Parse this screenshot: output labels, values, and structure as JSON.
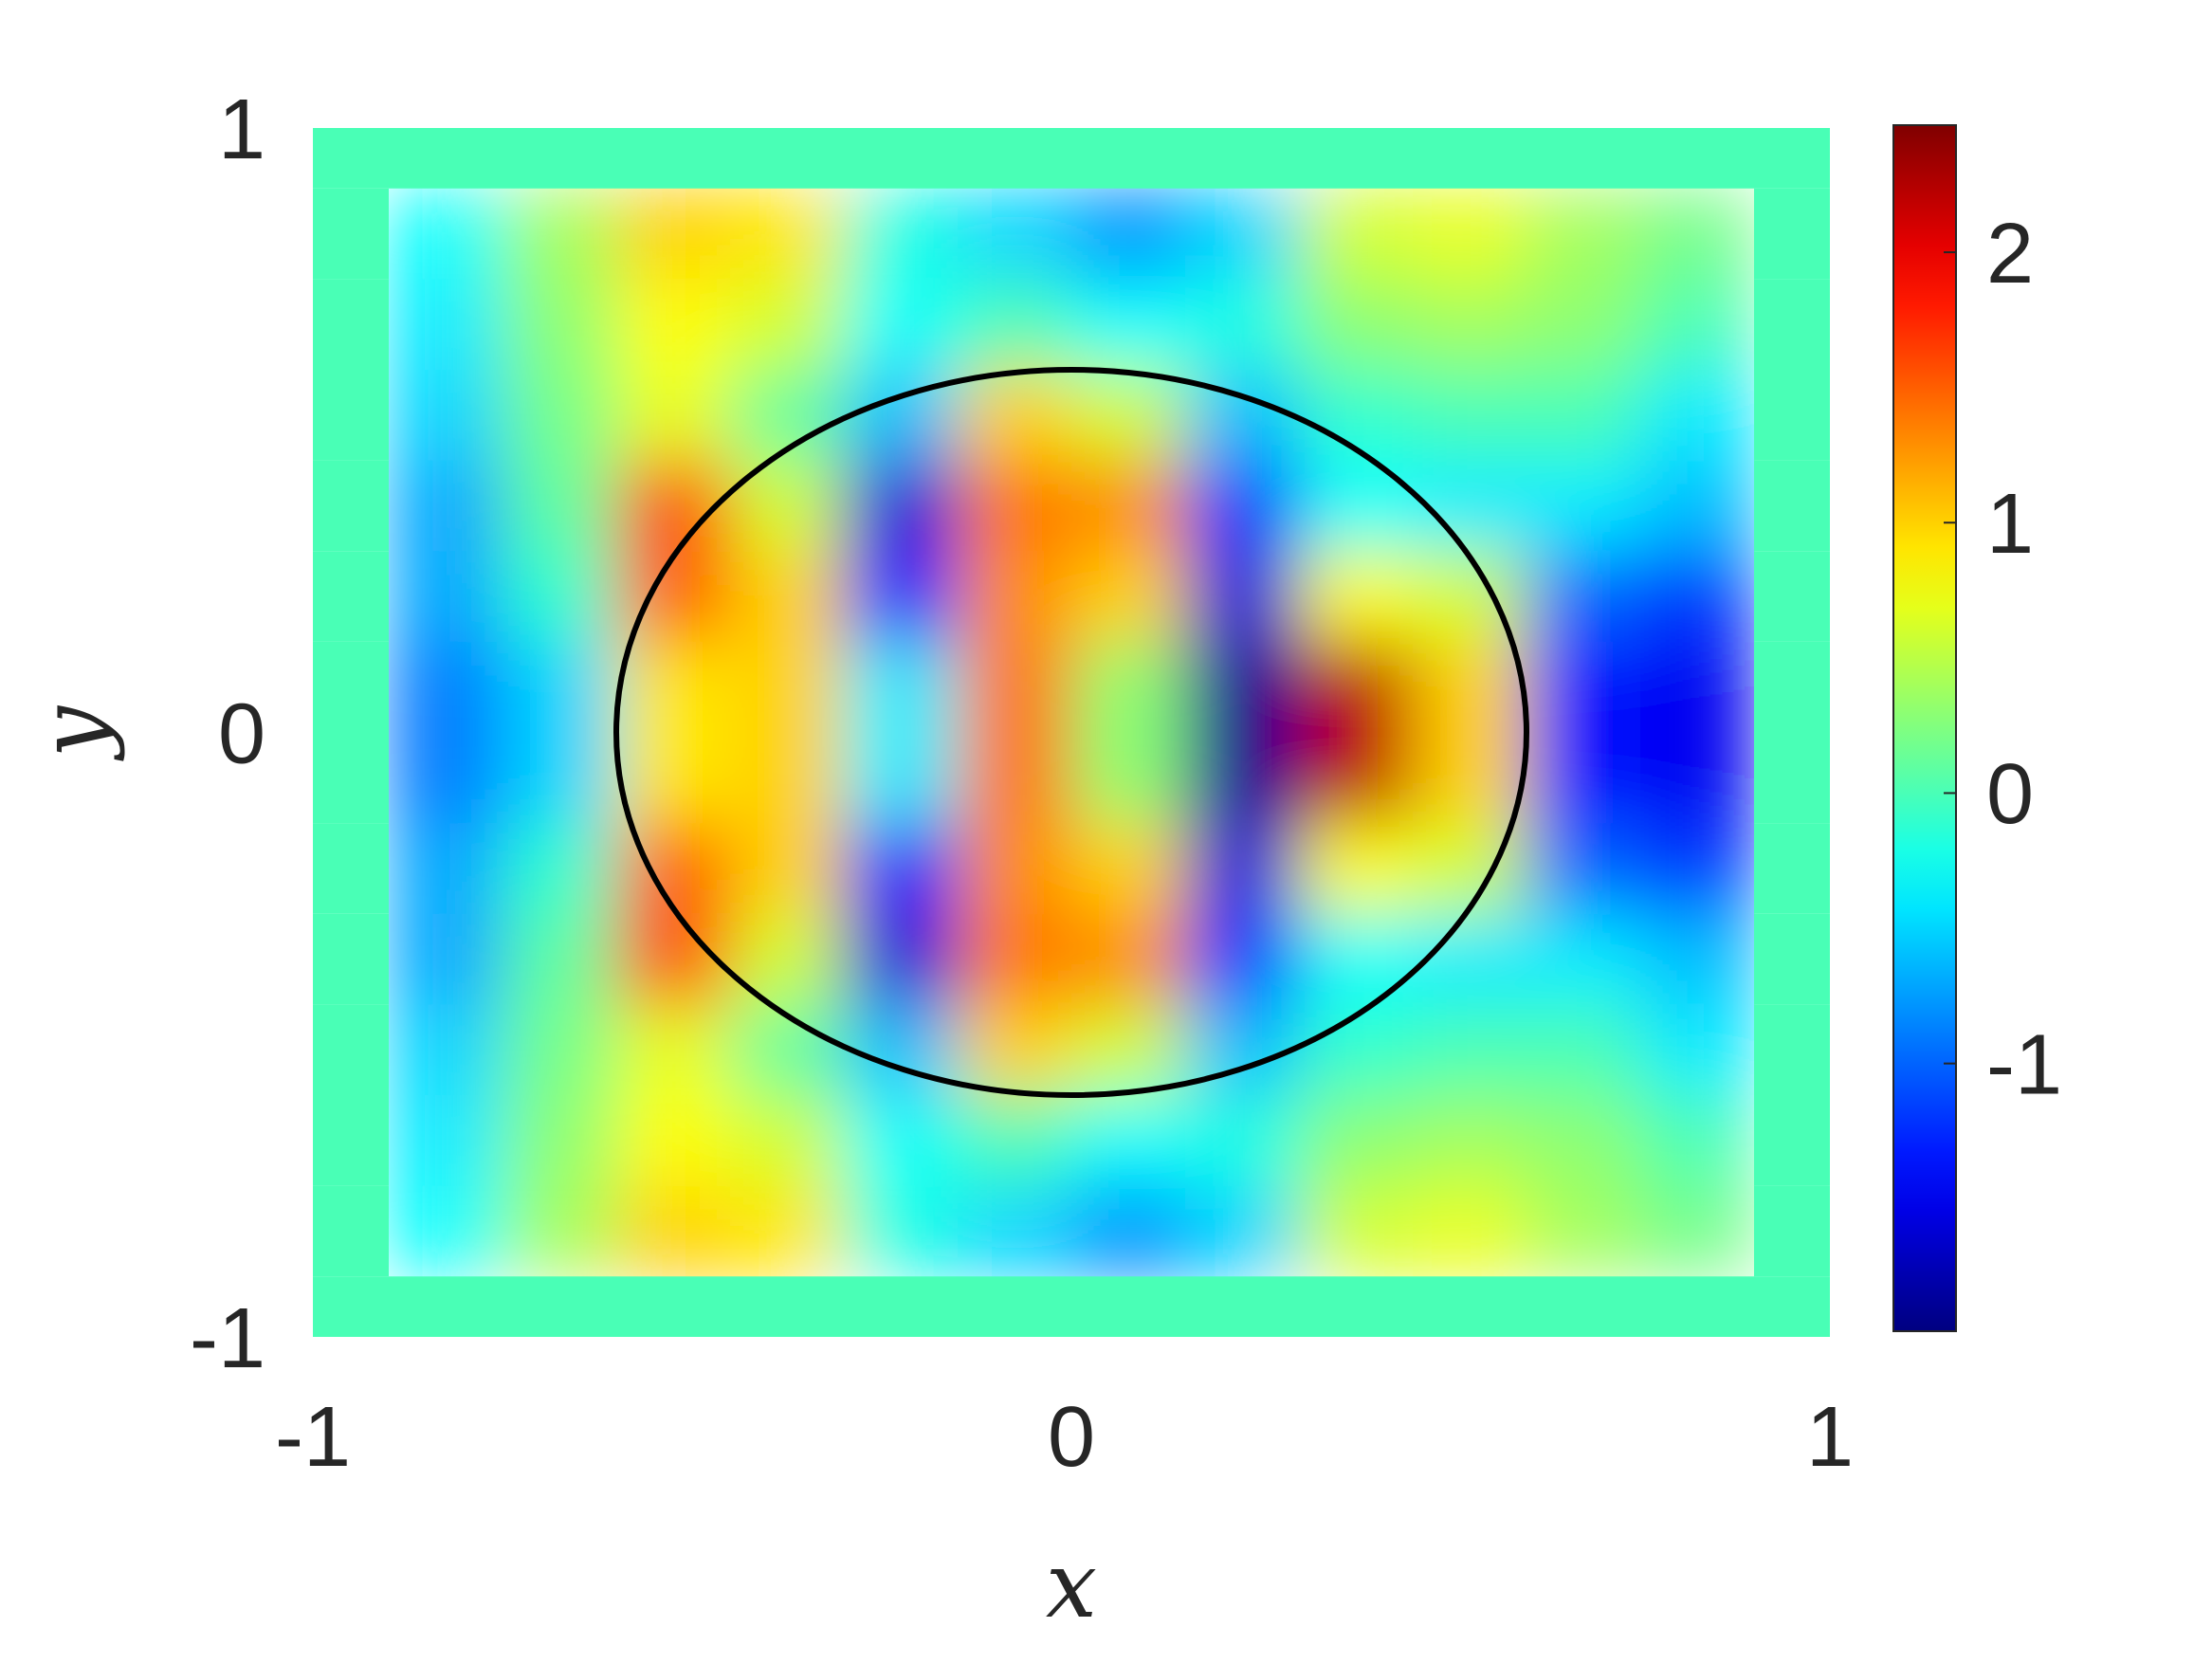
{
  "chart_data": {
    "type": "heatmap",
    "xlabel": "x",
    "ylabel": "y",
    "xlim": [
      -1,
      1
    ],
    "ylim": [
      -1,
      1
    ],
    "xticks": [
      -1,
      0,
      1
    ],
    "yticks": [
      -1,
      0,
      1
    ],
    "colormap": "jet",
    "clim": [
      -1.99,
      2.47
    ],
    "cticks": [
      -1,
      0,
      1,
      2
    ],
    "x_edges": [
      -1,
      -0.9,
      -0.75,
      -0.6,
      -0.45,
      -0.3,
      -0.15,
      0,
      0.15,
      0.3,
      0.45,
      0.6,
      0.75,
      0.9,
      1
    ],
    "y_edges": [
      1,
      0.9,
      0.75,
      0.6,
      0.45,
      0.3,
      0.15,
      0,
      -0.15,
      -0.3,
      -0.45,
      -0.6,
      -0.75,
      -0.9,
      -1
    ],
    "z": [
      [
        0,
        0,
        0,
        0,
        0,
        0,
        0,
        0,
        0,
        0,
        0,
        0,
        0,
        0
      ],
      [
        0,
        -0.3,
        0.4,
        1.0,
        0.9,
        -0.2,
        -0.5,
        -0.8,
        -0.5,
        0.6,
        0.7,
        0.4,
        0.2,
        0
      ],
      [
        0,
        -0.4,
        0.3,
        0.8,
        0.6,
        -0.3,
        0.0,
        -0.3,
        -0.2,
        0.3,
        0.4,
        0.3,
        0,
        0
      ],
      [
        0,
        -0.5,
        0.2,
        0.7,
        0.1,
        -0.6,
        1.0,
        0.6,
        -0.6,
        -0.1,
        0.0,
        0,
        -0.4,
        0
      ],
      [
        0,
        -0.7,
        0.1,
        1.6,
        0.6,
        -1.6,
        1.4,
        1.3,
        -1.2,
        -0.3,
        -0.4,
        -0.4,
        -0.6,
        0
      ],
      [
        0,
        -0.7,
        -0.1,
        1.5,
        1.0,
        -1.3,
        1.3,
        1.0,
        -1.6,
        0.8,
        0.6,
        -1.0,
        -1.2,
        0
      ],
      [
        0,
        -0.9,
        -0.5,
        0.9,
        1.0,
        -0.4,
        1.4,
        0.3,
        -1.9,
        2.2,
        1.0,
        -1.4,
        -1.5,
        0
      ],
      [
        0,
        -0.9,
        -0.5,
        0.9,
        1.0,
        -0.4,
        1.4,
        0.3,
        -1.9,
        2.2,
        1.0,
        -1.4,
        -1.5,
        0
      ],
      [
        0,
        -0.7,
        -0.1,
        1.5,
        1.0,
        -1.3,
        1.3,
        1.0,
        -1.6,
        0.8,
        0.6,
        -1.0,
        -1.2,
        0
      ],
      [
        0,
        -0.7,
        0.1,
        1.6,
        0.6,
        -1.6,
        1.4,
        1.3,
        -1.2,
        -0.3,
        -0.4,
        -0.4,
        -0.6,
        0
      ],
      [
        0,
        -0.5,
        0.2,
        0.7,
        0.1,
        -0.6,
        1.0,
        0.6,
        -0.6,
        -0.1,
        0.0,
        0,
        -0.4,
        0
      ],
      [
        0,
        -0.4,
        0.3,
        0.8,
        0.6,
        -0.3,
        0.0,
        -0.3,
        -0.2,
        0.3,
        0.4,
        0.3,
        0,
        0
      ],
      [
        0,
        -0.3,
        0.4,
        1.0,
        0.9,
        -0.2,
        -0.5,
        -0.8,
        -0.5,
        0.6,
        0.7,
        0.4,
        0.2,
        0
      ],
      [
        0,
        0,
        0,
        0,
        0,
        0,
        0,
        0,
        0,
        0,
        0,
        0,
        0,
        0
      ]
    ],
    "circle": {
      "center": [
        0,
        0
      ],
      "radius": 0.6
    }
  }
}
